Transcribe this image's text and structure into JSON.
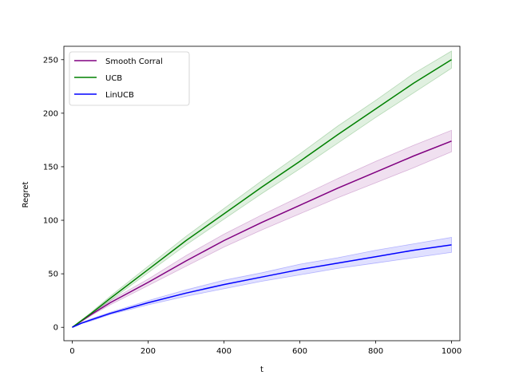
{
  "chart_data": {
    "type": "line",
    "title": "",
    "xlabel": "t",
    "ylabel": "Regret",
    "xlim": [
      -22,
      1022
    ],
    "ylim": [
      -12.5,
      262.5
    ],
    "xticks": [
      0,
      200,
      400,
      600,
      800,
      1000
    ],
    "yticks": [
      0,
      50,
      100,
      150,
      200,
      250
    ],
    "grid": false,
    "legend": "top-left",
    "series": [
      {
        "name": "Smooth Corral",
        "color": "#800080",
        "x": [
          0,
          50,
          100,
          200,
          300,
          400,
          500,
          600,
          700,
          800,
          900,
          1000
        ],
        "y": [
          0,
          12,
          23,
          42,
          62,
          81,
          98,
          114,
          130,
          145,
          160,
          174
        ],
        "lower": [
          0,
          11,
          21,
          39,
          57,
          75,
          91,
          106,
          121,
          135,
          149,
          164
        ],
        "upper": [
          0,
          13,
          25,
          45,
          67,
          87,
          105,
          122,
          139,
          155,
          170,
          184
        ]
      },
      {
        "name": "UCB",
        "color": "#008000",
        "x": [
          0,
          50,
          100,
          200,
          300,
          400,
          500,
          600,
          700,
          800,
          900,
          1000
        ],
        "y": [
          0,
          13,
          27,
          54,
          81,
          106,
          131,
          155,
          180,
          204,
          228,
          250
        ],
        "lower": [
          0,
          12,
          25,
          51,
          77,
          101,
          125,
          148,
          172,
          196,
          219,
          242
        ],
        "upper": [
          0,
          14,
          29,
          57,
          85,
          111,
          137,
          162,
          188,
          212,
          237,
          258
        ]
      },
      {
        "name": "LinUCB",
        "color": "#0000ff",
        "x": [
          0,
          25,
          50,
          100,
          150,
          200,
          300,
          400,
          500,
          600,
          700,
          800,
          900,
          1000
        ],
        "y": [
          0,
          4,
          7,
          13,
          18,
          23,
          32,
          40,
          47,
          54,
          60,
          66,
          72,
          77
        ],
        "lower": [
          0,
          3.5,
          6,
          12,
          16.5,
          21,
          29,
          36,
          43,
          49,
          55,
          60,
          65,
          70
        ],
        "upper": [
          0,
          4.5,
          8,
          14,
          19.5,
          25,
          35,
          44,
          51,
          59,
          65,
          72,
          78,
          84
        ]
      }
    ]
  }
}
